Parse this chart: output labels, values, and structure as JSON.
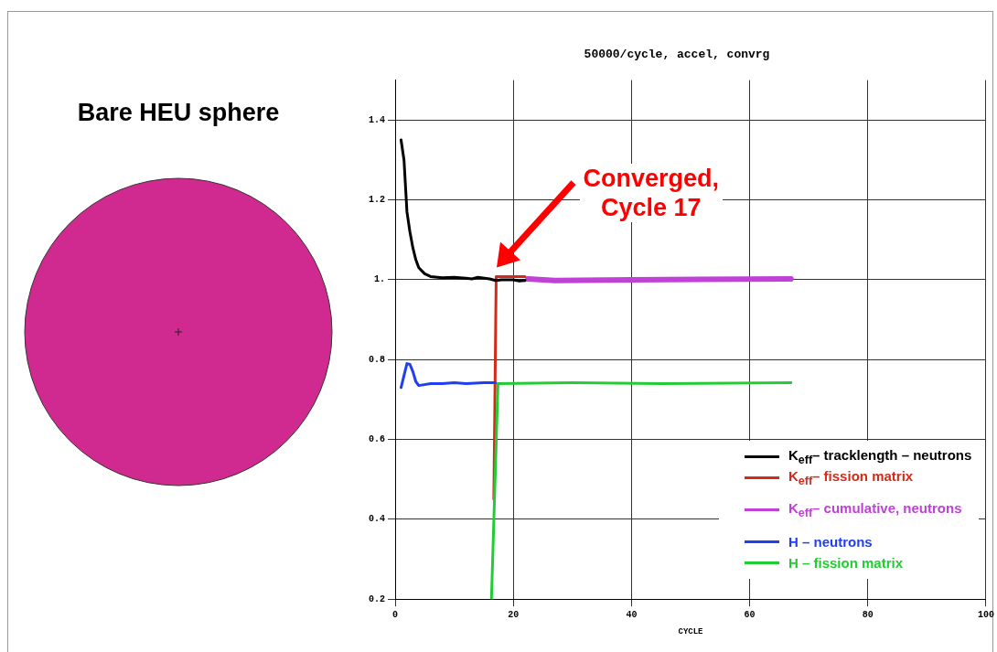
{
  "chart_data": {
    "type": "line",
    "title": "50000/cycle, accel, convrg",
    "xlabel": "CYCLE",
    "annotations": [
      "Bare HEU sphere",
      "Converged,\nCycle 17"
    ],
    "xlim": [
      0,
      100
    ],
    "xticks": [
      0,
      20,
      40,
      60,
      80,
      100
    ],
    "ylim": [
      0.2,
      1.5
    ],
    "yticks": [
      0.2,
      0.4,
      0.6,
      {
        "value": 0.8,
        "label": "0.8"
      },
      {
        "value": 1,
        "label": "1."
      },
      1.2,
      1.4
    ],
    "grid": true,
    "legend": "bottom right",
    "marker": "none",
    "line_style": "solid",
    "series": [
      {
        "name": "K$_{eff}$– tracklength – neutrons",
        "color": "#000000",
        "x": [
          1,
          1.5,
          2,
          2.5,
          3,
          3.5,
          4,
          5,
          6,
          8,
          10,
          12,
          13,
          14,
          16,
          17,
          18,
          20,
          21,
          22
        ],
        "values": [
          1.35,
          1.3,
          1.17,
          1.12,
          1.08,
          1.05,
          1.03,
          1.015,
          1.008,
          1.005,
          1.006,
          1.004,
          1.002,
          1.006,
          1.002,
          0.998,
          1.0,
          1.0,
          0.997,
          0.998
        ]
      },
      {
        "name": "K$_{eff}$– fission matrix",
        "color": "#d42a1a",
        "x": [
          16.7,
          17.1,
          22
        ],
        "values": [
          0.45,
          1.008,
          1.008
        ]
      },
      {
        "name": "K$_{eff}$– cumulative, neutrons",
        "color": "#c040d8",
        "x": [
          22.5,
          27,
          40,
          67
        ],
        "values": [
          1.002,
          0.998,
          1.0,
          1.002
        ]
      },
      {
        "name": "H – neutrons",
        "color": "#1f3ff0",
        "x": [
          1,
          1.5,
          2,
          2.5,
          3,
          3.5,
          4,
          6,
          8,
          10,
          12,
          15,
          17
        ],
        "values": [
          0.73,
          0.76,
          0.79,
          0.788,
          0.77,
          0.745,
          0.735,
          0.74,
          0.74,
          0.742,
          0.74,
          0.742,
          0.742
        ]
      },
      {
        "name": "H – fission matrix",
        "color": "#22cc33",
        "x": [
          16.3,
          17.4,
          30,
          45,
          67
        ],
        "values": [
          0.2,
          0.74,
          0.742,
          0.74,
          0.742
        ]
      }
    ]
  }
}
